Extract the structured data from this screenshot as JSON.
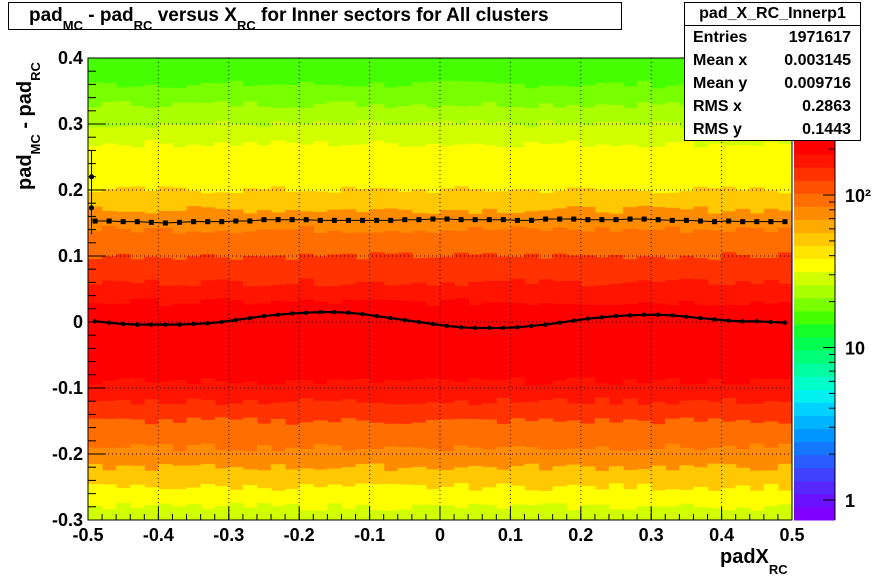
{
  "title": {
    "pre": "pad",
    "mc_sub": "MC",
    "mid1": " - pad",
    "rc_sub": "RC",
    "mid2": " versus X",
    "rc_sub2": "RC",
    "post": " for Inner sectors for All clusters"
  },
  "stats": {
    "name": "pad_X_RC_Innerp1",
    "rows": [
      {
        "key": "Entries",
        "value": "1971617"
      },
      {
        "key": "Mean x",
        "value": "0.003145"
      },
      {
        "key": "Mean y",
        "value": "0.009716"
      },
      {
        "key": "RMS x",
        "value": "0.2863"
      },
      {
        "key": "RMS y",
        "value": "0.1443"
      }
    ]
  },
  "axes": {
    "ylabel_pre": "pad",
    "ylabel_mc": "MC",
    "ylabel_mid": " - pad",
    "ylabel_rc": "RC",
    "xlabel_pre": "padX",
    "xlabel_sub": "RC"
  },
  "chart_data": {
    "type": "heatmap",
    "xlim": [
      -0.5,
      0.5
    ],
    "ylim": [
      -0.3,
      0.4
    ],
    "x_ticks": [
      "-0.5",
      "-0.4",
      "-0.3",
      "-0.2",
      "-0.1",
      "0",
      "0.1",
      "0.2",
      "0.3",
      "0.4",
      "0.5"
    ],
    "y_ticks": [
      "-0.3",
      "-0.2",
      "-0.1",
      "0",
      "0.1",
      "0.2",
      "0.3",
      "0.4"
    ],
    "grid": true,
    "colorbar": {
      "scale": "log",
      "tick_labels": [
        "1",
        "10",
        "10²"
      ],
      "colors": [
        "#7f00ff",
        "#6a12ff",
        "#5628ff",
        "#4040ff",
        "#2a5cff",
        "#1478ff",
        "#0096ff",
        "#00b4ff",
        "#00d2ff",
        "#00f0f0",
        "#00ffc8",
        "#00ffa0",
        "#00ff78",
        "#00ff50",
        "#14ff28",
        "#46ff00",
        "#78ff00",
        "#aaff00",
        "#d2ff00",
        "#ffff00",
        "#ffe600",
        "#ffc800",
        "#ffaa00",
        "#ff8c00",
        "#ff6e00",
        "#ff5000",
        "#ff3200",
        "#ff1400",
        "#ff0000"
      ]
    },
    "band_colors": [
      {
        "y_from": 0.36,
        "y_to": 0.41,
        "color": "#46ff00"
      },
      {
        "y_from": 0.33,
        "y_to": 0.36,
        "color": "#78ff00"
      },
      {
        "y_from": 0.3,
        "y_to": 0.33,
        "color": "#aaff00"
      },
      {
        "y_from": 0.27,
        "y_to": 0.3,
        "color": "#d2ff00"
      },
      {
        "y_from": 0.2,
        "y_to": 0.27,
        "color": "#ffff00"
      },
      {
        "y_from": 0.17,
        "y_to": 0.2,
        "color": "#ffc800"
      },
      {
        "y_from": 0.14,
        "y_to": 0.17,
        "color": "#ff8c00"
      },
      {
        "y_from": 0.1,
        "y_to": 0.14,
        "color": "#ff6e00"
      },
      {
        "y_from": 0.06,
        "y_to": 0.1,
        "color": "#ff3200"
      },
      {
        "y_from": 0.03,
        "y_to": 0.06,
        "color": "#ff1400"
      },
      {
        "y_from": -0.09,
        "y_to": 0.03,
        "color": "#ff0000"
      },
      {
        "y_from": -0.12,
        "y_to": -0.09,
        "color": "#ff1400"
      },
      {
        "y_from": -0.15,
        "y_to": -0.12,
        "color": "#ff3200"
      },
      {
        "y_from": -0.19,
        "y_to": -0.15,
        "color": "#ff6e00"
      },
      {
        "y_from": -0.22,
        "y_to": -0.19,
        "color": "#ff8c00"
      },
      {
        "y_from": -0.25,
        "y_to": -0.22,
        "color": "#ffc800"
      },
      {
        "y_from": -0.28,
        "y_to": -0.25,
        "color": "#ffff00"
      },
      {
        "y_from": -0.31,
        "y_to": -0.28,
        "color": "#d2ff00"
      }
    ],
    "series": [
      {
        "marker": "square",
        "x": [
          -0.49,
          -0.47,
          -0.45,
          -0.43,
          -0.41,
          -0.39,
          -0.37,
          -0.35,
          -0.33,
          -0.31,
          -0.29,
          -0.27,
          -0.25,
          -0.23,
          -0.21,
          -0.19,
          -0.17,
          -0.15,
          -0.13,
          -0.11,
          -0.09,
          -0.07,
          -0.05,
          -0.03,
          -0.01,
          0.01,
          0.03,
          0.05,
          0.07,
          0.09,
          0.11,
          0.13,
          0.15,
          0.17,
          0.19,
          0.21,
          0.23,
          0.25,
          0.27,
          0.29,
          0.31,
          0.33,
          0.35,
          0.37,
          0.39,
          0.41,
          0.43,
          0.45,
          0.47,
          0.49
        ],
        "y": [
          0.153,
          0.153,
          0.152,
          0.152,
          0.151,
          0.15,
          0.151,
          0.152,
          0.152,
          0.152,
          0.153,
          0.153,
          0.155,
          0.155,
          0.155,
          0.155,
          0.154,
          0.154,
          0.154,
          0.154,
          0.154,
          0.154,
          0.155,
          0.155,
          0.156,
          0.156,
          0.155,
          0.155,
          0.155,
          0.155,
          0.154,
          0.154,
          0.156,
          0.156,
          0.156,
          0.155,
          0.155,
          0.155,
          0.156,
          0.156,
          0.155,
          0.154,
          0.154,
          0.153,
          0.152,
          0.153,
          0.152,
          0.152,
          0.152,
          0.152
        ]
      },
      {
        "marker": "dot",
        "x": [
          -0.49,
          -0.47,
          -0.45,
          -0.43,
          -0.41,
          -0.39,
          -0.37,
          -0.35,
          -0.33,
          -0.31,
          -0.29,
          -0.27,
          -0.25,
          -0.23,
          -0.21,
          -0.19,
          -0.17,
          -0.15,
          -0.13,
          -0.11,
          -0.09,
          -0.07,
          -0.05,
          -0.03,
          -0.01,
          0.01,
          0.03,
          0.05,
          0.07,
          0.09,
          0.11,
          0.13,
          0.15,
          0.17,
          0.19,
          0.21,
          0.23,
          0.25,
          0.27,
          0.29,
          0.31,
          0.33,
          0.35,
          0.37,
          0.39,
          0.41,
          0.43,
          0.45,
          0.47,
          0.49
        ],
        "y": [
          0.001,
          -0.001,
          -0.003,
          -0.004,
          -0.004,
          -0.004,
          -0.004,
          -0.003,
          -0.002,
          0.0,
          0.003,
          0.006,
          0.009,
          0.011,
          0.013,
          0.014,
          0.015,
          0.015,
          0.014,
          0.012,
          0.009,
          0.006,
          0.003,
          0.0,
          -0.003,
          -0.006,
          -0.008,
          -0.009,
          -0.009,
          -0.009,
          -0.008,
          -0.006,
          -0.004,
          -0.001,
          0.002,
          0.005,
          0.007,
          0.009,
          0.01,
          0.011,
          0.011,
          0.01,
          0.008,
          0.006,
          0.004,
          0.002,
          0.001,
          0.001,
          0.0,
          -0.001
        ]
      },
      {
        "marker": "errorbar",
        "x": [
          -0.495,
          -0.495
        ],
        "y": [
          0.22,
          0.173
        ],
        "yerr": [
          0.04,
          0.04
        ]
      }
    ]
  }
}
